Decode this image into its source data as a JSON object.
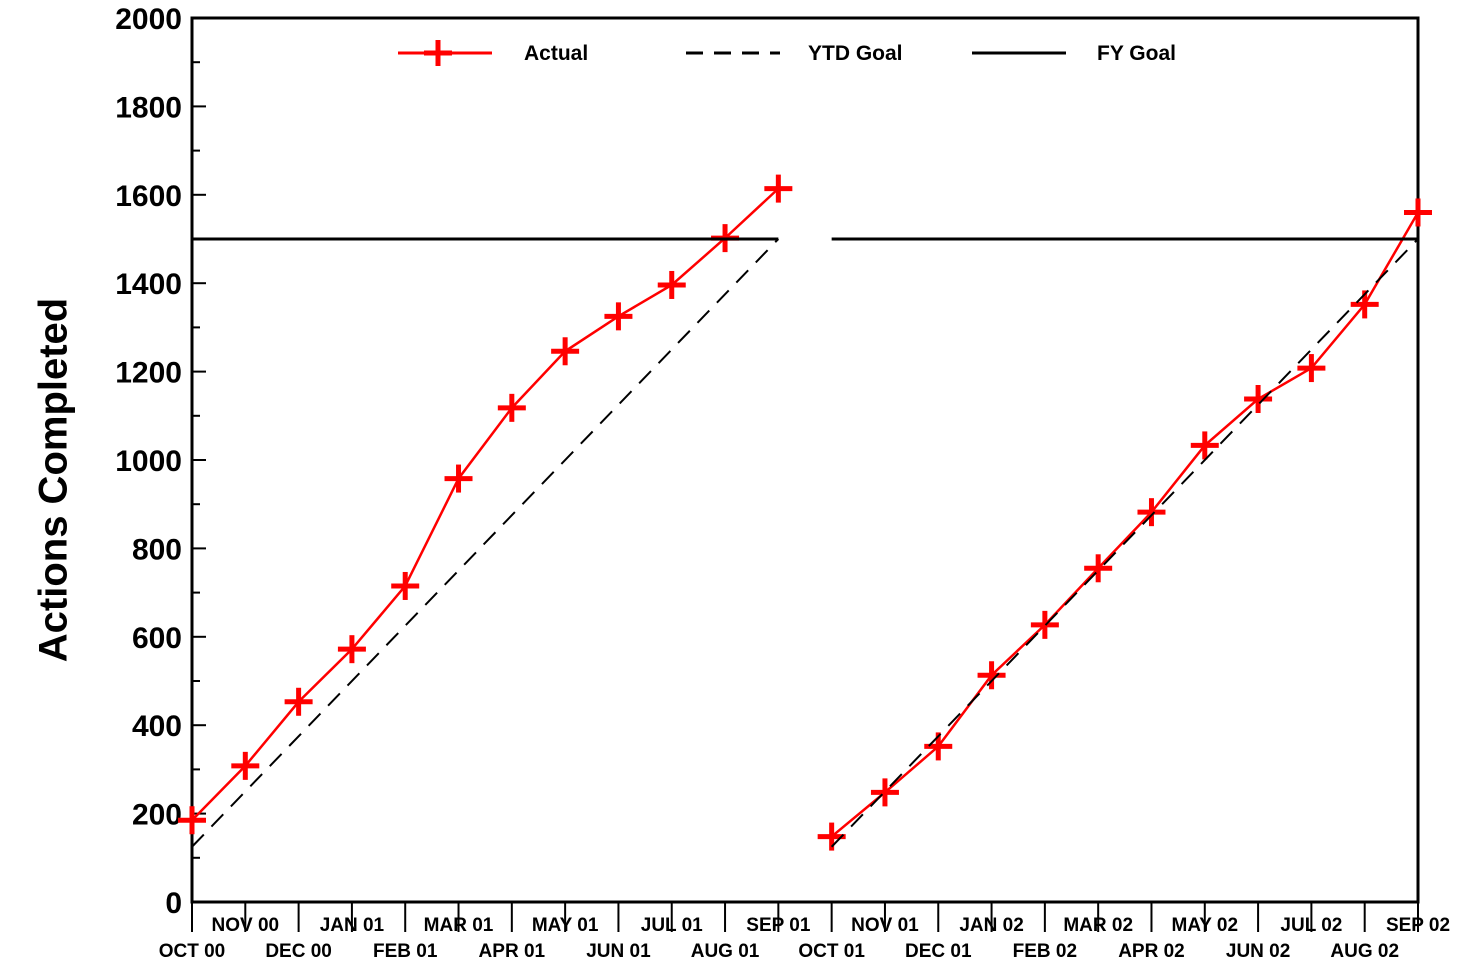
{
  "chart_data": {
    "type": "line",
    "ylabel": "Actions Completed",
    "xlabel": "",
    "ylim": [
      0,
      2000
    ],
    "y_ticks": [
      0,
      200,
      400,
      600,
      800,
      1000,
      1200,
      1400,
      1600,
      1800,
      2000
    ],
    "categories": [
      "OCT 00",
      "NOV 00",
      "DEC 00",
      "JAN 01",
      "FEB 01",
      "MAR 01",
      "APR 01",
      "MAY 01",
      "JUN 01",
      "JUL 01",
      "AUG 01",
      "SEP 01",
      "OCT 01",
      "NOV 01",
      "DEC 01",
      "JAN 02",
      "FEB 02",
      "MAR 02",
      "APR 02",
      "MAY 02",
      "JUN 02",
      "JUL 02",
      "AUG 02",
      "SEP 02"
    ],
    "grid": false,
    "legend_position": "top",
    "legend": [
      "Actual",
      "YTD Goal",
      "FY Goal"
    ],
    "series": [
      {
        "name": "Actual",
        "color": "#ff0000",
        "marker": "plus",
        "segments": [
          {
            "x_start": 0,
            "values": [
              185,
              308,
              453,
              572,
              715,
              958,
              1118,
              1246,
              1325,
              1396,
              1502,
              1614
            ]
          },
          {
            "x_start": 12,
            "values": [
              148,
              248,
              352,
              513,
              627,
              755,
              882,
              1033,
              1138,
              1208,
              1352,
              1560
            ]
          }
        ]
      },
      {
        "name": "YTD Goal",
        "color": "#000000",
        "style": "dashed",
        "segments": [
          {
            "x": [
              0,
              11
            ],
            "values": [
              125,
              1500
            ]
          },
          {
            "x": [
              12,
              23
            ],
            "values": [
              125,
              1500
            ]
          }
        ]
      },
      {
        "name": "FY Goal",
        "color": "#000000",
        "style": "solid",
        "segments": [
          {
            "x": [
              0,
              11
            ],
            "values": [
              1500,
              1500
            ]
          },
          {
            "x": [
              12,
              23
            ],
            "values": [
              1500,
              1500
            ]
          }
        ]
      }
    ]
  }
}
